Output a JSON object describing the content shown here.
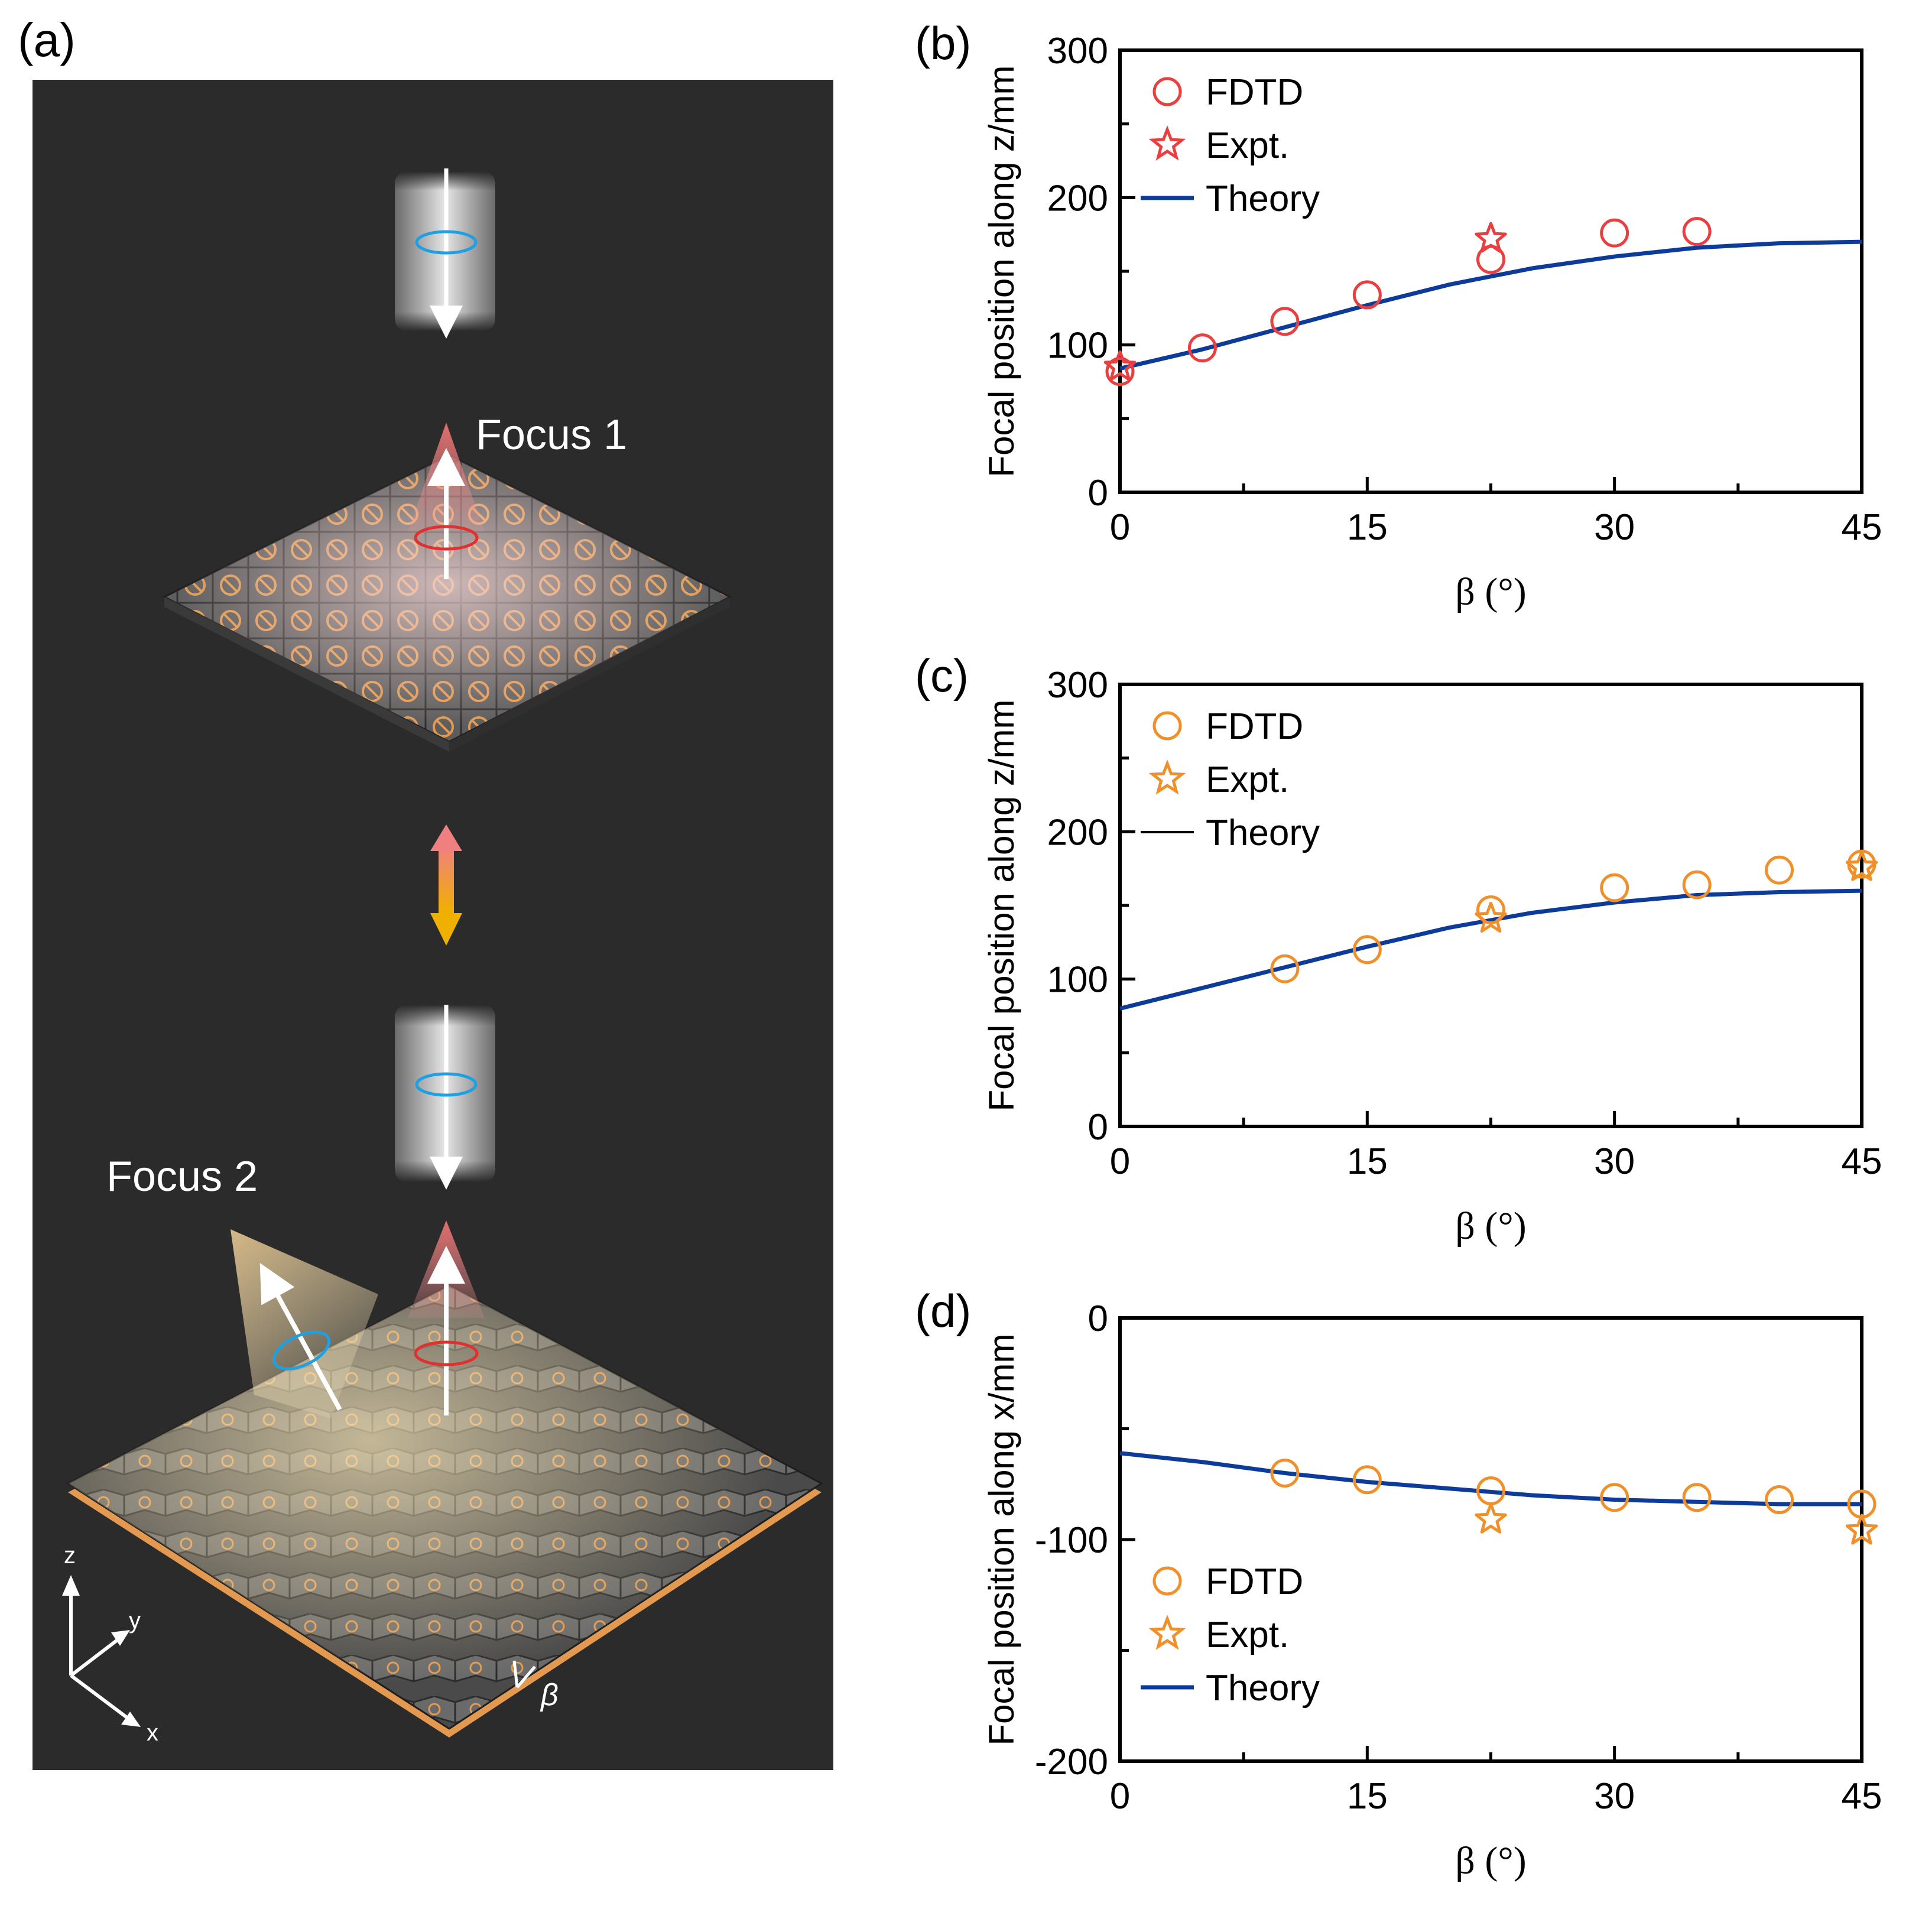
{
  "panel_a": {
    "label": "(a)",
    "focus1": "Focus 1",
    "focus2": "Focus 2",
    "axis_z": "z",
    "axis_y": "y",
    "axis_x": "x",
    "angle_symbol": "β",
    "colors": {
      "background": "#2b2b2b",
      "tile": "#5a5a5a",
      "tile_edge": "#2a2a2a",
      "glyph": "#e39a50",
      "beam_red": "#e07878",
      "beam_yellow": "#f0d090",
      "spin_blue": "#1fa0e0",
      "spin_red": "#e03030",
      "arrow_top": "#f08080",
      "arrow_bottom": "#f0b000"
    }
  },
  "chart_data": [
    {
      "panel": "(b)",
      "type": "scatter",
      "xlabel": "β (°)",
      "ylabel": "Focal position along z/mm",
      "xlim": [
        0,
        45
      ],
      "ylim": [
        0,
        300
      ],
      "xticks": [
        0,
        15,
        30,
        45
      ],
      "yticks": [
        0,
        100,
        200,
        300
      ],
      "xtick_labels": [
        "0",
        "15",
        "30",
        "45"
      ],
      "ytick_labels": [
        "0",
        "100",
        "200",
        "300"
      ],
      "legend_position": "top-left",
      "series": [
        {
          "name": "FDTD",
          "marker": "circle",
          "color": "#e84040",
          "x": [
            0,
            5,
            10,
            15,
            22.5,
            30,
            35
          ],
          "y": [
            82,
            98,
            116,
            134,
            158,
            176,
            177
          ]
        },
        {
          "name": "Expt.",
          "marker": "star",
          "color": "#e84040",
          "x": [
            0,
            22.5
          ],
          "y": [
            85,
            172
          ]
        },
        {
          "name": "Theory",
          "marker": "line",
          "color": "#0d3b9a",
          "x": [
            0,
            5,
            10,
            15,
            20,
            25,
            30,
            35,
            40,
            45
          ],
          "y": [
            84,
            97,
            112,
            127,
            141,
            152,
            160,
            166,
            169,
            170
          ]
        }
      ]
    },
    {
      "panel": "(c)",
      "type": "scatter",
      "xlabel": "β (°)",
      "ylabel": "Focal position along z/mm",
      "xlim": [
        0,
        45
      ],
      "ylim": [
        0,
        300
      ],
      "xticks": [
        0,
        15,
        30,
        45
      ],
      "yticks": [
        0,
        100,
        200,
        300
      ],
      "xtick_labels": [
        "0",
        "15",
        "30",
        "45"
      ],
      "ytick_labels": [
        "0",
        "100",
        "200",
        "300"
      ],
      "legend_position": "top-left",
      "series": [
        {
          "name": "FDTD",
          "marker": "circle",
          "color": "#f0902a",
          "x": [
            10,
            15,
            22.5,
            30,
            35,
            40,
            45
          ],
          "y": [
            107,
            120,
            147,
            162,
            164,
            174,
            178
          ]
        },
        {
          "name": "Expt.",
          "marker": "star",
          "color": "#f0902a",
          "x": [
            22.5,
            45
          ],
          "y": [
            141,
            176
          ]
        },
        {
          "name": "Theory",
          "marker": "line",
          "color": "#0d3b9a",
          "legend_color": "#000000",
          "x": [
            0,
            5,
            10,
            15,
            20,
            25,
            30,
            35,
            40,
            45
          ],
          "y": [
            80,
            94,
            108,
            122,
            135,
            145,
            152,
            157,
            159,
            160
          ]
        }
      ]
    },
    {
      "panel": "(d)",
      "type": "scatter",
      "xlabel": "β (°)",
      "ylabel": "Focal position along x/mm",
      "xlim": [
        0,
        45
      ],
      "ylim": [
        -200,
        0
      ],
      "xticks": [
        0,
        15,
        30,
        45
      ],
      "yticks": [
        -200,
        -100,
        0
      ],
      "xtick_labels": [
        "0",
        "15",
        "30",
        "45"
      ],
      "ytick_labels": [
        "-200",
        "-100",
        "0"
      ],
      "legend_position": "bottom-left",
      "series": [
        {
          "name": "FDTD",
          "marker": "circle",
          "color": "#f0902a",
          "x": [
            10,
            15,
            22.5,
            30,
            35,
            40,
            45
          ],
          "y": [
            -70,
            -73,
            -78,
            -81,
            -81,
            -82,
            -84
          ]
        },
        {
          "name": "Expt.",
          "marker": "star",
          "color": "#f0902a",
          "x": [
            22.5,
            45
          ],
          "y": [
            -91,
            -96
          ]
        },
        {
          "name": "Theory",
          "marker": "line",
          "color": "#0d3b9a",
          "x": [
            0,
            5,
            10,
            15,
            20,
            25,
            30,
            35,
            40,
            45
          ],
          "y": [
            -61,
            -65,
            -70,
            -74,
            -77,
            -80,
            -82,
            -83,
            -84,
            -84
          ]
        }
      ]
    }
  ]
}
